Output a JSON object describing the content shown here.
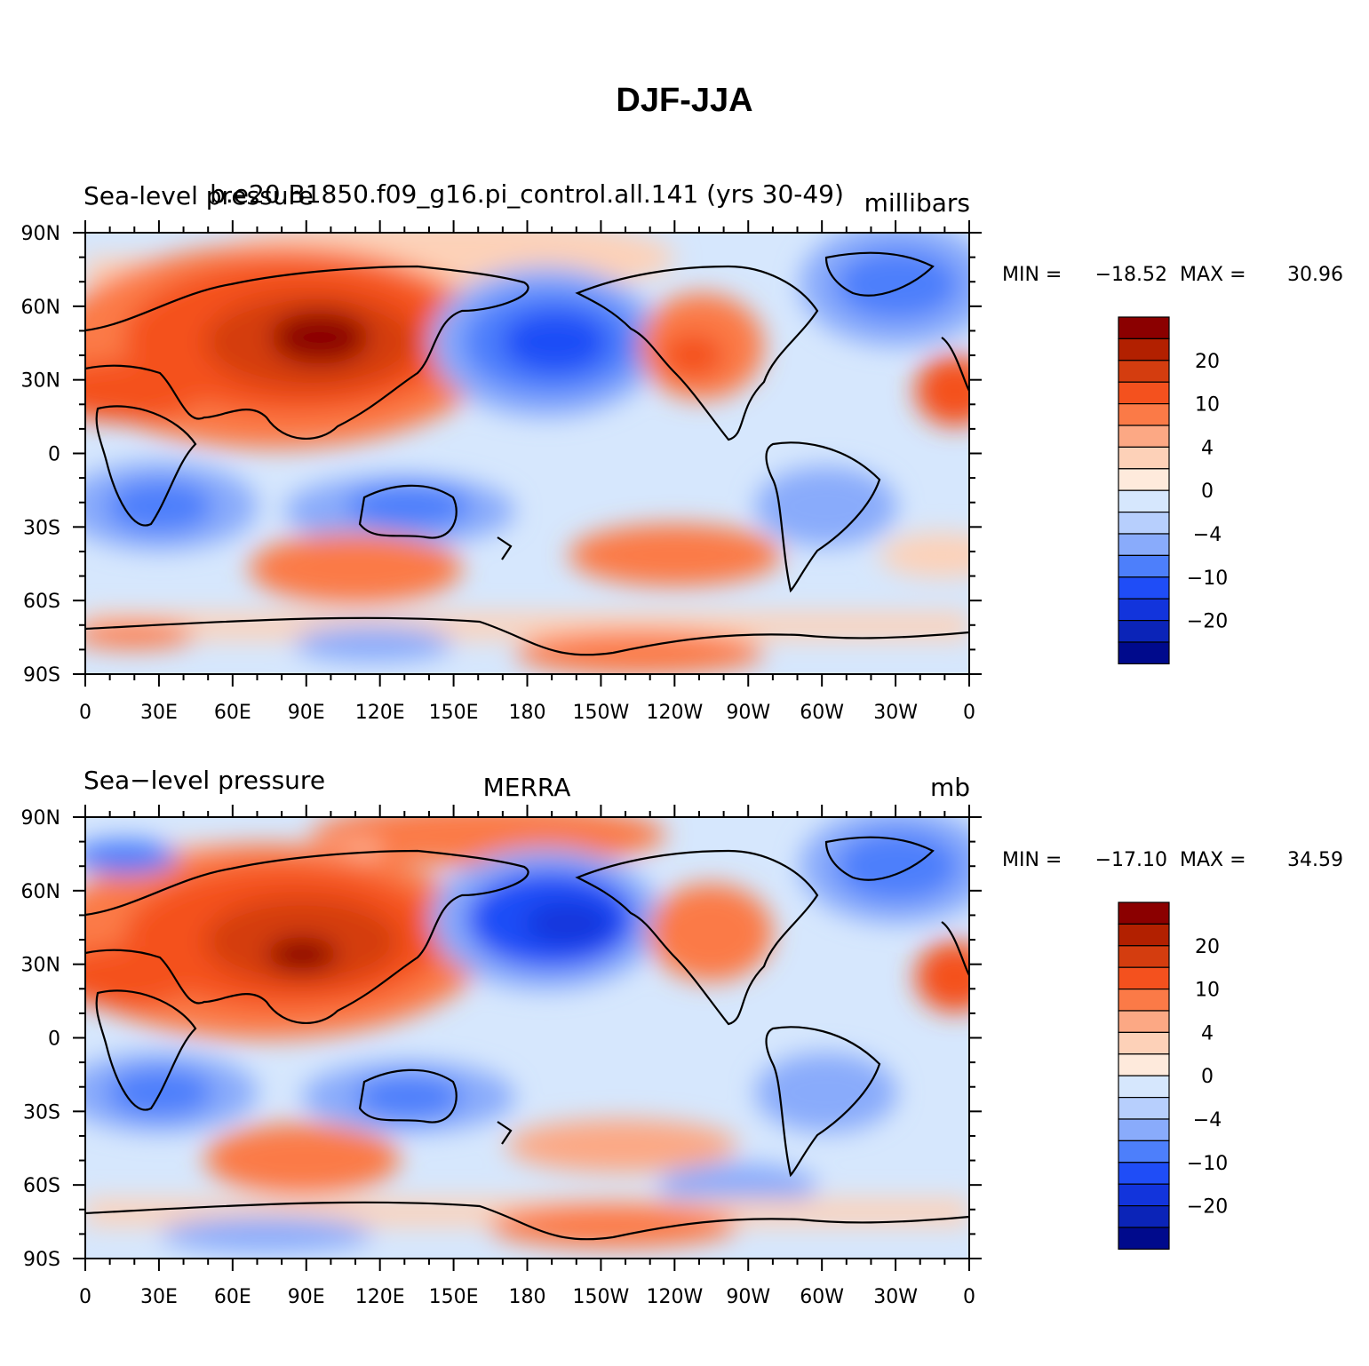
{
  "figure_title": "DJF-JJA",
  "panels": [
    {
      "left_title": "Sea-level pressure",
      "center_title": "b.e20.B1850.f09_g16.pi_control.all.141 (yrs 30-49)",
      "right_title": "millibars",
      "stats": {
        "min_label": "MIN =",
        "min": "−18.52",
        "max_label": "MAX =",
        "max": "30.96"
      }
    },
    {
      "left_title": "Sea−level pressure",
      "center_title": "MERRA",
      "right_title": "mb",
      "stats": {
        "min_label": "MIN =",
        "min": "−17.10",
        "max_label": "MAX =",
        "max": "34.59"
      }
    }
  ],
  "axes": {
    "lat_labels": [
      "90N",
      "60N",
      "30N",
      "0",
      "30S",
      "60S",
      "90S"
    ],
    "lon_labels": [
      "0",
      "30E",
      "60E",
      "90E",
      "120E",
      "150E",
      "180",
      "150W",
      "120W",
      "90W",
      "60W",
      "30W",
      "0"
    ]
  },
  "colorbar": {
    "colors": [
      "#8b0000",
      "#b22000",
      "#d43d0f",
      "#f4511e",
      "#fb7a47",
      "#fca884",
      "#fdd1b8",
      "#feeadc",
      "#d6e7fd",
      "#b7cffd",
      "#89abfb",
      "#4d7ffb",
      "#1f4df7",
      "#1234dc",
      "#0b24b8",
      "#000a8c"
    ],
    "labels": [
      {
        "text": "20",
        "after_box": 2
      },
      {
        "text": "10",
        "after_box": 4
      },
      {
        "text": "4",
        "after_box": 6
      },
      {
        "text": "0",
        "after_box": 8
      },
      {
        "text": "−4",
        "after_box": 10
      },
      {
        "text": "−10",
        "after_box": 12
      },
      {
        "text": "−20",
        "after_box": 14
      }
    ]
  },
  "legend_note": ""
}
